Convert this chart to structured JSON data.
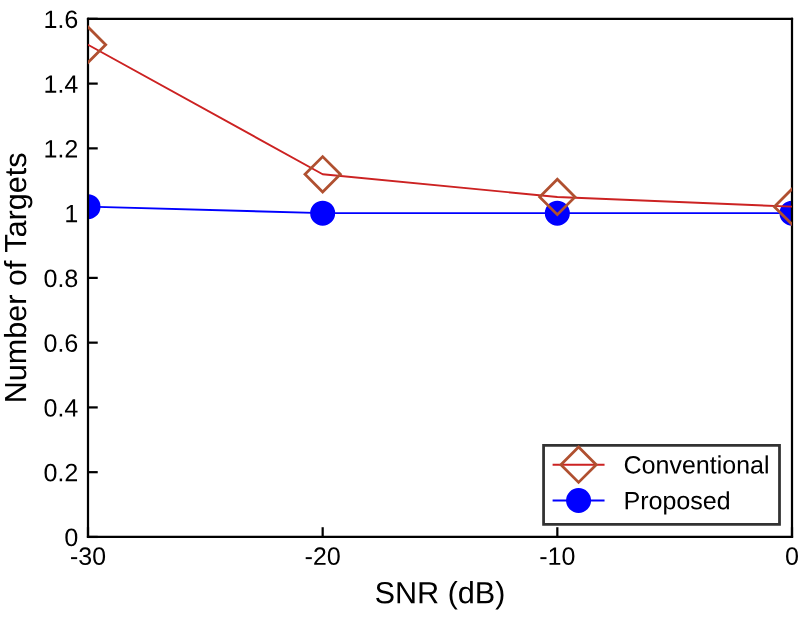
{
  "chart_data": {
    "type": "line",
    "xlabel": "SNR (dB)",
    "ylabel": "Number of Targets",
    "x": [
      -30,
      -20,
      -10,
      0
    ],
    "series": [
      {
        "name": "Conventional",
        "color": "#cc2222",
        "marker": "diamond",
        "values": [
          1.52,
          1.12,
          1.05,
          1.02
        ]
      },
      {
        "name": "Proposed",
        "color": "#0000ff",
        "marker": "circle",
        "values": [
          1.02,
          1.0,
          1.0,
          1.0
        ]
      }
    ],
    "xlim": [
      -30,
      0
    ],
    "xticks": [
      -30,
      -20,
      -10,
      0
    ],
    "ylim": [
      0,
      1.6
    ],
    "yticks": [
      0,
      0.2,
      0.4,
      0.6,
      0.8,
      1,
      1.2,
      1.4,
      1.6
    ],
    "grid": false,
    "legend": "bottom right"
  }
}
